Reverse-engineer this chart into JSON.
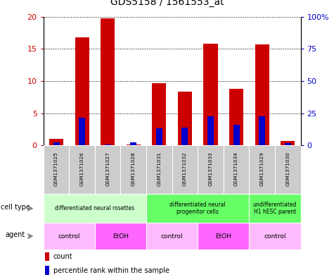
{
  "title": "GDS5158 / 1561553_at",
  "samples": [
    "GSM1371025",
    "GSM1371026",
    "GSM1371027",
    "GSM1371028",
    "GSM1371031",
    "GSM1371032",
    "GSM1371033",
    "GSM1371034",
    "GSM1371029",
    "GSM1371030"
  ],
  "counts": [
    1.0,
    16.8,
    19.7,
    0.1,
    9.7,
    8.4,
    15.8,
    8.8,
    15.7,
    0.7
  ],
  "percentiles": [
    2.5,
    21.5,
    0.5,
    2.5,
    13.5,
    14.0,
    22.5,
    16.0,
    22.5,
    2.0
  ],
  "ylim_left": [
    0,
    20
  ],
  "ylim_right": [
    0,
    100
  ],
  "left_ticks": [
    0,
    5,
    10,
    15,
    20
  ],
  "right_ticks": [
    0,
    25,
    50,
    75,
    100
  ],
  "cell_type_groups": [
    {
      "label": "differentiated neural rosettes",
      "start": 0,
      "end": 4,
      "color": "#ccffcc"
    },
    {
      "label": "differentiated neural\nprogenitor cells",
      "start": 4,
      "end": 8,
      "color": "#66ff66"
    },
    {
      "label": "undifferentiated\nH1 hESC parent",
      "start": 8,
      "end": 10,
      "color": "#66ff66"
    }
  ],
  "agent_groups": [
    {
      "label": "control",
      "start": 0,
      "end": 2,
      "color": "#ffbbff"
    },
    {
      "label": "EtOH",
      "start": 2,
      "end": 4,
      "color": "#ff66ff"
    },
    {
      "label": "control",
      "start": 4,
      "end": 6,
      "color": "#ffbbff"
    },
    {
      "label": "EtOH",
      "start": 6,
      "end": 8,
      "color": "#ff66ff"
    },
    {
      "label": "control",
      "start": 8,
      "end": 10,
      "color": "#ffbbff"
    }
  ],
  "bar_color": "#cc0000",
  "percentile_color": "#0000cc",
  "tick_color_left": "#cc0000",
  "tick_color_right": "#0000cc",
  "sample_bg_color": "#cccccc",
  "label_arrow_color": "#888888"
}
